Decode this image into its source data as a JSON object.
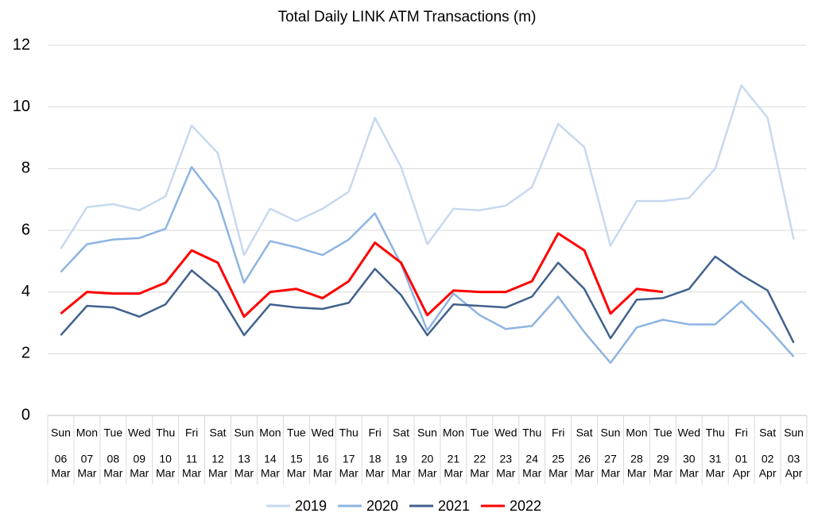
{
  "chart_data": {
    "type": "line",
    "title": "Total Daily LINK ATM Transactions (m)",
    "categories": [
      [
        "Sun",
        "06",
        "Mar"
      ],
      [
        "Mon",
        "07",
        "Mar"
      ],
      [
        "Tue",
        "08",
        "Mar"
      ],
      [
        "Wed",
        "09",
        "Mar"
      ],
      [
        "Thu",
        "10",
        "Mar"
      ],
      [
        "Fri",
        "11",
        "Mar"
      ],
      [
        "Sat",
        "12",
        "Mar"
      ],
      [
        "Sun",
        "13",
        "Mar"
      ],
      [
        "Mon",
        "14",
        "Mar"
      ],
      [
        "Tue",
        "15",
        "Mar"
      ],
      [
        "Wed",
        "16",
        "Mar"
      ],
      [
        "Thu",
        "17",
        "Mar"
      ],
      [
        "Fri",
        "18",
        "Mar"
      ],
      [
        "Sat",
        "19",
        "Mar"
      ],
      [
        "Sun",
        "20",
        "Mar"
      ],
      [
        "Mon",
        "21",
        "Mar"
      ],
      [
        "Tue",
        "22",
        "Mar"
      ],
      [
        "Wed",
        "23",
        "Mar"
      ],
      [
        "Thu",
        "24",
        "Mar"
      ],
      [
        "Fri",
        "25",
        "Mar"
      ],
      [
        "Sat",
        "26",
        "Mar"
      ],
      [
        "Sun",
        "27",
        "Mar"
      ],
      [
        "Mon",
        "28",
        "Mar"
      ],
      [
        "Tue",
        "29",
        "Mar"
      ],
      [
        "Wed",
        "30",
        "Mar"
      ],
      [
        "Thu",
        "31",
        "Mar"
      ],
      [
        "Fri",
        "01",
        "Apr"
      ],
      [
        "Sat",
        "02",
        "Apr"
      ],
      [
        "Sun",
        "03",
        "Apr"
      ]
    ],
    "series": [
      {
        "name": "2019",
        "color": "#c6d9f0",
        "values": [
          5.4,
          6.75,
          6.85,
          6.65,
          7.1,
          9.4,
          8.5,
          5.2,
          6.7,
          6.3,
          6.7,
          7.25,
          9.65,
          8.05,
          5.55,
          6.7,
          6.65,
          6.8,
          7.4,
          9.45,
          8.7,
          5.5,
          6.95,
          6.95,
          7.05,
          8.0,
          10.7,
          9.65,
          5.7
        ]
      },
      {
        "name": "2020",
        "color": "#8db4e2",
        "values": [
          4.65,
          5.55,
          5.7,
          5.75,
          6.05,
          8.05,
          6.95,
          4.3,
          5.65,
          5.45,
          5.2,
          5.7,
          6.55,
          4.9,
          2.75,
          3.95,
          3.25,
          2.8,
          2.9,
          3.85,
          2.7,
          1.7,
          2.85,
          3.1,
          2.95,
          2.95,
          3.7,
          2.85,
          1.9
        ]
      },
      {
        "name": "2021",
        "color": "#41618d",
        "values": [
          2.6,
          3.55,
          3.5,
          3.2,
          3.6,
          4.7,
          4.0,
          2.6,
          3.6,
          3.5,
          3.45,
          3.65,
          4.75,
          3.9,
          2.6,
          3.6,
          3.55,
          3.5,
          3.85,
          4.95,
          4.1,
          2.5,
          3.75,
          3.8,
          4.1,
          5.15,
          4.55,
          4.05,
          2.35
        ]
      },
      {
        "name": "2022",
        "color": "#ff0000",
        "values": [
          3.3,
          4.0,
          3.95,
          3.95,
          4.3,
          5.35,
          4.95,
          3.2,
          4.0,
          4.1,
          3.8,
          4.35,
          5.6,
          4.95,
          3.25,
          4.05,
          4.0,
          4.0,
          4.35,
          5.9,
          5.35,
          3.3,
          4.1,
          4.0,
          null,
          null,
          null,
          null,
          null
        ]
      }
    ],
    "ylim": [
      0,
      12
    ],
    "yticks": [
      0,
      2,
      4,
      6,
      8,
      10,
      12
    ],
    "grid": true,
    "legend": "bottom"
  }
}
